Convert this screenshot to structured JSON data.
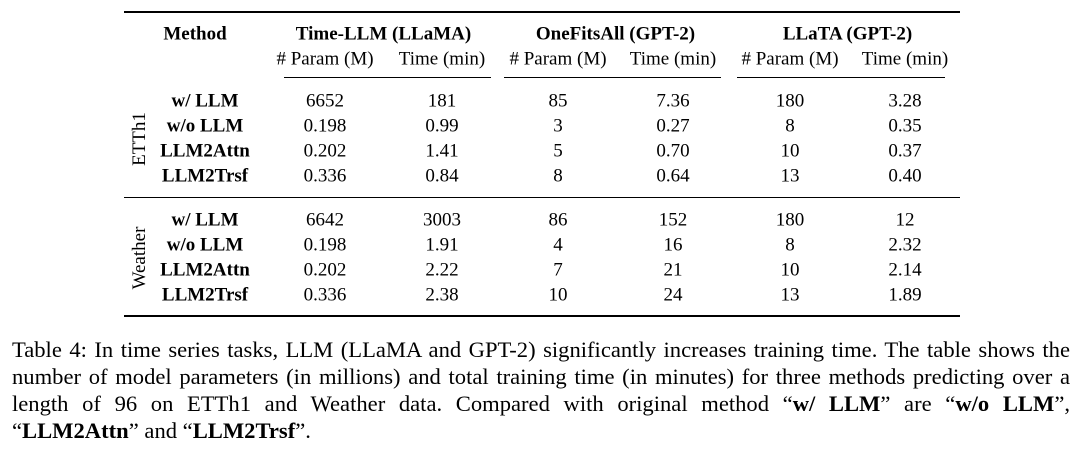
{
  "table": {
    "method_header": "Method",
    "groups": [
      {
        "name": "Time-LLM (LLaMA)",
        "columns": [
          "# Param (M)",
          "Time (min)"
        ]
      },
      {
        "name": "OneFitsAll (GPT-2)",
        "columns": [
          "# Param (M)",
          "Time (min)"
        ]
      },
      {
        "name": "LLaTA (GPT-2)",
        "columns": [
          "# Param (M)",
          "Time (min)"
        ]
      }
    ],
    "sections": [
      {
        "name": "ETTh1",
        "rows": [
          {
            "method": "w/ LLM",
            "values": [
              "6652",
              "181",
              "85",
              "7.36",
              "180",
              "3.28"
            ]
          },
          {
            "method": "w/o LLM",
            "values": [
              "0.198",
              "0.99",
              "3",
              "0.27",
              "8",
              "0.35"
            ]
          },
          {
            "method": "LLM2Attn",
            "values": [
              "0.202",
              "1.41",
              "5",
              "0.70",
              "10",
              "0.37"
            ]
          },
          {
            "method": "LLM2Trsf",
            "values": [
              "0.336",
              "0.84",
              "8",
              "0.64",
              "13",
              "0.40"
            ]
          }
        ]
      },
      {
        "name": "Weather",
        "rows": [
          {
            "method": "w/ LLM",
            "values": [
              "6642",
              "3003",
              "86",
              "152",
              "180",
              "12"
            ]
          },
          {
            "method": "w/o LLM",
            "values": [
              "0.198",
              "1.91",
              "4",
              "16",
              "8",
              "2.32"
            ]
          },
          {
            "method": "LLM2Attn",
            "values": [
              "0.202",
              "2.22",
              "7",
              "21",
              "10",
              "2.14"
            ]
          },
          {
            "method": "LLM2Trsf",
            "values": [
              "0.336",
              "2.38",
              "10",
              "24",
              "13",
              "1.89"
            ]
          }
        ]
      }
    ]
  },
  "caption": {
    "segments": [
      {
        "text": "Table 4: In time series tasks, LLM (LLaMA and GPT-2) significantly increases training time. The table shows the number of model parameters (in millions) and total training time (in minutes) for three methods predicting over a length of 96 on ETTh1 and Weather data. Compared with original method “",
        "bold": false
      },
      {
        "text": "w/ LLM",
        "bold": true
      },
      {
        "text": "” are “",
        "bold": false
      },
      {
        "text": "w/o LLM",
        "bold": true
      },
      {
        "text": "”, “",
        "bold": false
      },
      {
        "text": "LLM2Attn",
        "bold": true
      },
      {
        "text": "” and “",
        "bold": false
      },
      {
        "text": "LLM2Trsf",
        "bold": true
      },
      {
        "text": "”.",
        "bold": false
      }
    ]
  }
}
